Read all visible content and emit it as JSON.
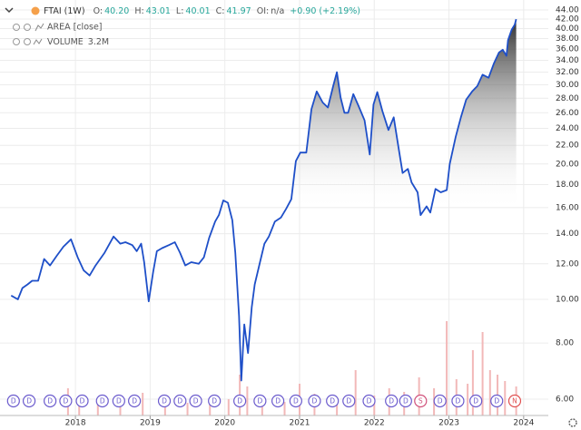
{
  "header": {
    "symbol": "FTAI (1W)",
    "fields": [
      {
        "label": "O:",
        "value": "40.20"
      },
      {
        "label": "H:",
        "value": "43.01"
      },
      {
        "label": "L:",
        "value": "40.01"
      },
      {
        "label": "C:",
        "value": "41.97"
      },
      {
        "label": "OI:",
        "value": "n/a"
      }
    ],
    "change": "+0.90",
    "change_pct": "(+2.19%)",
    "indicator": "AREA [close]",
    "volume_name": "VOLUME",
    "volume_last": "3.2M"
  },
  "chart_data": {
    "type": "area",
    "log_scale": true,
    "grid": true,
    "color": "#1e4fc8",
    "x": [
      2017.14,
      2017.23,
      2017.29,
      2017.36,
      2017.42,
      2017.5,
      2017.58,
      2017.66,
      2017.75,
      2017.84,
      2017.94,
      2018.03,
      2018.11,
      2018.19,
      2018.27,
      2018.39,
      2018.51,
      2018.6,
      2018.67,
      2018.76,
      2018.82,
      2018.88,
      2018.92,
      2018.98,
      2019.04,
      2019.09,
      2019.16,
      2019.25,
      2019.33,
      2019.4,
      2019.47,
      2019.55,
      2019.65,
      2019.72,
      2019.79,
      2019.87,
      2019.92,
      2019.98,
      2020.04,
      2020.1,
      2020.14,
      2020.19,
      2020.22,
      2020.26,
      2020.31,
      2020.36,
      2020.4,
      2020.47,
      2020.53,
      2020.59,
      2020.67,
      2020.75,
      2020.82,
      2020.89,
      2020.95,
      2021.01,
      2021.09,
      2021.16,
      2021.23,
      2021.31,
      2021.38,
      2021.45,
      2021.5,
      2021.55,
      2021.6,
      2021.65,
      2021.72,
      2021.79,
      2021.87,
      2021.94,
      2021.99,
      2022.04,
      2022.11,
      2022.19,
      2022.26,
      2022.33,
      2022.38,
      2022.45,
      2022.5,
      2022.58,
      2022.62,
      2022.7,
      2022.75,
      2022.82,
      2022.89,
      2022.97,
      2023.01,
      2023.09,
      2023.16,
      2023.23,
      2023.31,
      2023.38,
      2023.45,
      2023.53,
      2023.6,
      2023.67,
      2023.72,
      2023.77,
      2023.79,
      2023.84,
      2023.88,
      2023.9
    ],
    "values": [
      10.2,
      10.0,
      10.6,
      10.8,
      11.0,
      11.0,
      12.3,
      11.9,
      12.5,
      13.1,
      13.6,
      12.4,
      11.6,
      11.3,
      11.9,
      12.7,
      13.8,
      13.3,
      13.4,
      13.2,
      12.8,
      13.3,
      12.1,
      9.9,
      11.5,
      12.8,
      13.0,
      13.2,
      13.4,
      12.7,
      11.9,
      12.1,
      12.0,
      12.4,
      13.7,
      14.9,
      15.4,
      16.6,
      16.4,
      15.0,
      12.7,
      9.2,
      6.6,
      8.8,
      7.6,
      9.6,
      10.8,
      12.1,
      13.3,
      13.8,
      14.9,
      15.2,
      15.9,
      16.7,
      20.3,
      21.2,
      21.2,
      26.5,
      29.0,
      27.4,
      26.7,
      29.8,
      32.0,
      28.1,
      26.0,
      26.0,
      28.6,
      26.9,
      25.0,
      21.0,
      27.1,
      28.9,
      26.2,
      23.8,
      25.4,
      21.5,
      19.1,
      19.5,
      18.2,
      17.3,
      15.4,
      16.1,
      15.6,
      17.6,
      17.3,
      17.5,
      20.0,
      23.0,
      25.4,
      27.8,
      29.0,
      29.8,
      31.6,
      31.1,
      33.4,
      35.4,
      35.9,
      34.8,
      37.7,
      39.8,
      40.8,
      41.97
    ],
    "xlim": [
      2016.99,
      2024.33
    ],
    "xticks": [
      2018,
      2019,
      2020,
      2021,
      2022,
      2023,
      2024
    ],
    "ylim": [
      5.52,
      46.3
    ],
    "yticks": [
      {
        "value": 6,
        "label": "6.00"
      },
      {
        "value": 8,
        "label": "8.00"
      },
      {
        "value": 10,
        "label": "10.00"
      },
      {
        "value": 12,
        "label": "12.00"
      },
      {
        "value": 14,
        "label": "14.00"
      },
      {
        "value": 16,
        "label": "16.00"
      },
      {
        "value": 18,
        "label": "18.00"
      },
      {
        "value": 20,
        "label": "20.00"
      },
      {
        "value": 22,
        "label": "22.00"
      },
      {
        "value": 24,
        "label": "24.00"
      },
      {
        "value": 26,
        "label": "26.00"
      },
      {
        "value": 28,
        "label": "28.00"
      },
      {
        "value": 30,
        "label": "30.00"
      },
      {
        "value": 32,
        "label": "32.00"
      },
      {
        "value": 34,
        "label": "34.00"
      },
      {
        "value": 36,
        "label": "36.00"
      },
      {
        "value": 38,
        "label": "38.00"
      },
      {
        "value": 40,
        "label": "40.00"
      },
      {
        "value": 42,
        "label": "42.00"
      },
      {
        "value": 44,
        "label": "44.00"
      }
    ],
    "volume": {
      "color": "#f2b8b8",
      "ylim": [
        0,
        12
      ],
      "x": [
        2017.9,
        2018.05,
        2018.3,
        2018.6,
        2018.9,
        2019.2,
        2019.5,
        2019.8,
        2020.05,
        2020.2,
        2020.3,
        2020.5,
        2020.8,
        2021.0,
        2021.2,
        2021.5,
        2021.75,
        2022.0,
        2022.2,
        2022.4,
        2022.6,
        2022.8,
        2022.97,
        2023.1,
        2023.25,
        2023.32,
        2023.45,
        2023.55,
        2023.65,
        2023.75,
        2023.9
      ],
      "values": [
        3.0,
        1.5,
        1.2,
        1.8,
        2.5,
        1.0,
        1.4,
        1.6,
        1.8,
        4.5,
        3.2,
        2.0,
        1.5,
        3.5,
        2.4,
        2.0,
        5.0,
        2.2,
        3.0,
        2.6,
        4.2,
        3.0,
        10.4,
        4.0,
        3.5,
        7.2,
        9.2,
        5.0,
        4.5,
        3.8,
        3.2
      ]
    },
    "events": [
      {
        "x": 2017.17,
        "label": "D"
      },
      {
        "x": 2017.38,
        "label": "D"
      },
      {
        "x": 2017.66,
        "label": "D"
      },
      {
        "x": 2017.87,
        "label": "D"
      },
      {
        "x": 2018.09,
        "label": "D"
      },
      {
        "x": 2018.36,
        "label": "D"
      },
      {
        "x": 2018.58,
        "label": "D"
      },
      {
        "x": 2018.79,
        "label": "D"
      },
      {
        "x": 2019.19,
        "label": "D"
      },
      {
        "x": 2019.4,
        "label": "D"
      },
      {
        "x": 2019.61,
        "label": "D"
      },
      {
        "x": 2019.86,
        "label": "D"
      },
      {
        "x": 2020.2,
        "label": "D"
      },
      {
        "x": 2020.47,
        "label": "D"
      },
      {
        "x": 2020.71,
        "label": "D"
      },
      {
        "x": 2020.95,
        "label": "D"
      },
      {
        "x": 2021.2,
        "label": "D"
      },
      {
        "x": 2021.44,
        "label": "D"
      },
      {
        "x": 2021.66,
        "label": "D"
      },
      {
        "x": 2021.93,
        "label": "D"
      },
      {
        "x": 2022.23,
        "label": "D"
      },
      {
        "x": 2022.42,
        "label": "D"
      },
      {
        "x": 2022.62,
        "label": "S"
      },
      {
        "x": 2022.88,
        "label": "D"
      },
      {
        "x": 2023.12,
        "label": "D"
      },
      {
        "x": 2023.36,
        "label": "D"
      },
      {
        "x": 2023.64,
        "label": "D"
      },
      {
        "x": 2023.88,
        "label": "N"
      }
    ]
  }
}
